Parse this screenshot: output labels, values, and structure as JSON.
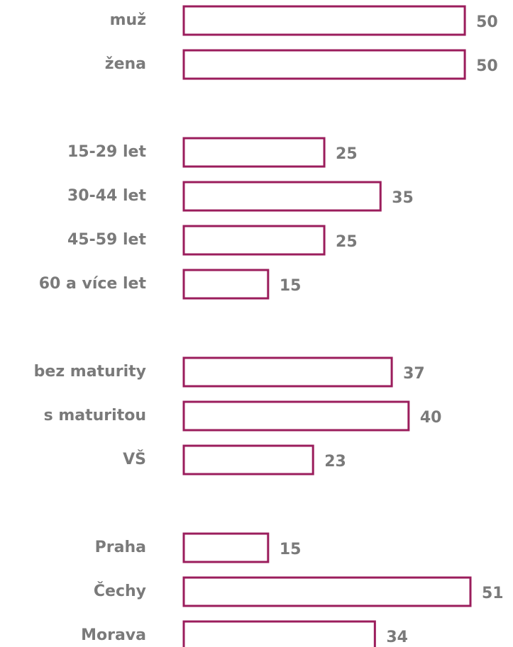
{
  "chart_data": {
    "type": "hbar",
    "categories": [
      "muž",
      "žena",
      null,
      "15-29 let",
      "30-44 let",
      "45-59 let",
      "60 a více let",
      null,
      "bez maturity",
      "s maturitou",
      "VŠ",
      null,
      "Praha",
      "Čechy",
      "Morava"
    ],
    "values": [
      50,
      50,
      null,
      25,
      35,
      25,
      15,
      null,
      37,
      40,
      23,
      null,
      15,
      51,
      34
    ],
    "color": "#9b1d5c"
  }
}
